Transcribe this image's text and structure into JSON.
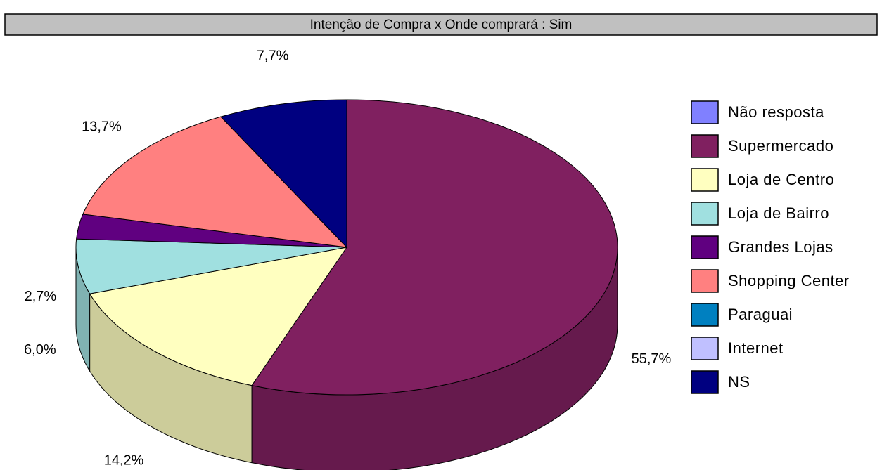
{
  "chart_data": {
    "type": "pie3d",
    "title": "Intenção de Compra x Onde comprará : Sim",
    "categories": [
      "Não resposta",
      "Supermercado",
      "Loja de Centro",
      "Loja de Bairro",
      "Grandes Lojas",
      "Shopping Center",
      "Paraguai",
      "Internet",
      "NS"
    ],
    "values": [
      0,
      55.7,
      14.2,
      6.0,
      2.7,
      13.7,
      0,
      0,
      7.7
    ],
    "value_labels": [
      null,
      "55,7%",
      "14,2%",
      "6,0%",
      "2,7%",
      "13,7%",
      null,
      null,
      "7,7%"
    ],
    "colors": [
      "#8080ff",
      "#802060",
      "#ffffc0",
      "#a0e0e0",
      "#600080",
      "#ff8080",
      "#0080c0",
      "#c0c0ff",
      "#000080"
    ],
    "legend": "right"
  }
}
